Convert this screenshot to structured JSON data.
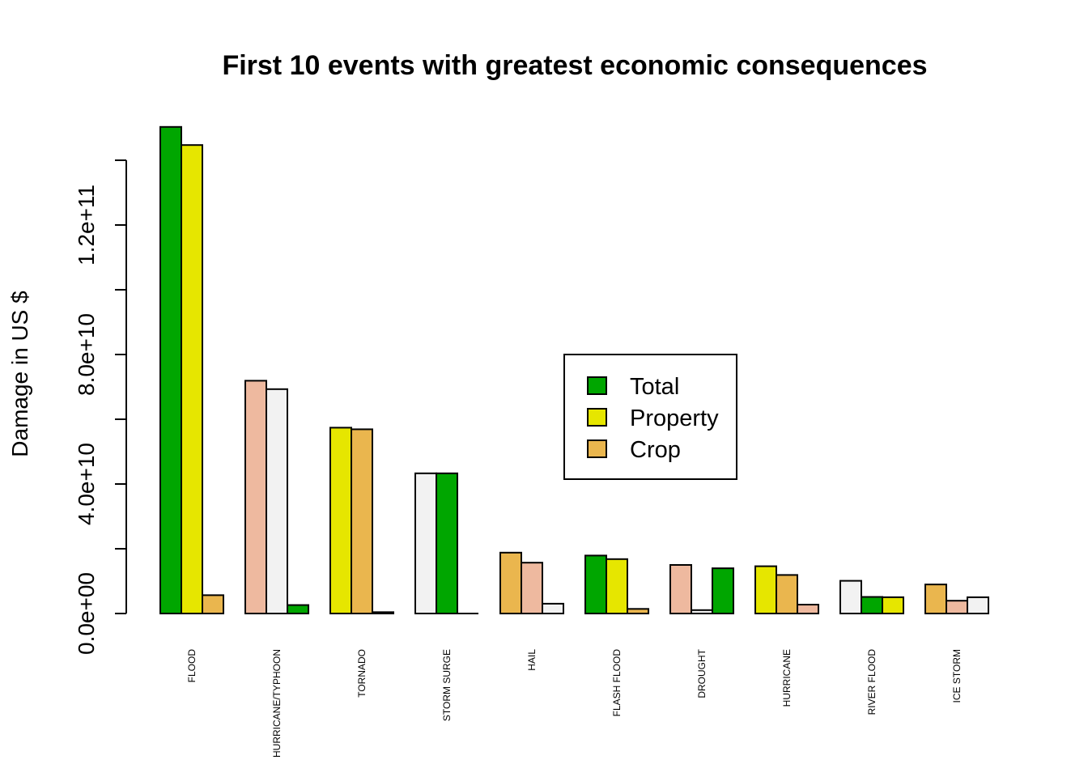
{
  "chart_data": {
    "type": "bar",
    "title": "First 10 events with greatest economic consequences",
    "ylabel": "Damage in US $",
    "xlabel": "",
    "ylim": [
      0,
      150000000000
    ],
    "yticks": [
      0,
      20000000000,
      40000000000,
      60000000000,
      80000000000,
      100000000000,
      120000000000,
      140000000000
    ],
    "ytick_labels": [
      "0.0e+00",
      "",
      "4.0e+10",
      "",
      "8.0e+10",
      "",
      "1.2e+11",
      ""
    ],
    "categories": [
      "FLOOD",
      "HURRICANE/TYPHOON",
      "TORNADO",
      "STORM SURGE",
      "HAIL",
      "FLASH FLOOD",
      "DROUGHT",
      "HURRICANE",
      "RIVER FLOOD",
      "ICE STORM"
    ],
    "series": [
      {
        "name": "Total",
        "values": [
          150300000000,
          71900000000,
          57400000000,
          43300000000,
          18800000000,
          17900000000,
          15000000000,
          14600000000,
          10100000000,
          8970000000
        ]
      },
      {
        "name": "Property",
        "values": [
          144700000000,
          69300000000,
          56900000000,
          43300000000,
          15700000000,
          16800000000,
          1050000000,
          11900000000,
          5120000000,
          3950000000
        ]
      },
      {
        "name": "Crop",
        "values": [
          5660000000,
          2610000000,
          415000000,
          5000,
          3030000000,
          1420000000,
          13970000000,
          2740000000,
          5030000000,
          5020000000
        ]
      }
    ],
    "bar_colors": [
      [
        "#00A600",
        "#E6E600",
        "#EAB64E"
      ],
      [
        "#EEB99F",
        "#F2F2F2",
        "#00A600"
      ],
      [
        "#E6E600",
        "#EAB64E",
        "#EEB99F"
      ],
      [
        "#F2F2F2",
        "#00A600",
        "#E6E600"
      ],
      [
        "#EAB64E",
        "#EEB99F",
        "#F2F2F2"
      ],
      [
        "#00A600",
        "#E6E600",
        "#EAB64E"
      ],
      [
        "#EEB99F",
        "#F2F2F2",
        "#00A600"
      ],
      [
        "#E6E600",
        "#EAB64E",
        "#EEB99F"
      ],
      [
        "#F2F2F2",
        "#00A600",
        "#E6E600"
      ],
      [
        "#EAB64E",
        "#EEB99F",
        "#F2F2F2"
      ]
    ],
    "legend": {
      "placement": "center-right",
      "entries": [
        {
          "label": "Total",
          "color": "#00A600"
        },
        {
          "label": "Property",
          "color": "#E6E600"
        },
        {
          "label": "Crop",
          "color": "#EAB64E"
        }
      ]
    },
    "grid": false
  }
}
